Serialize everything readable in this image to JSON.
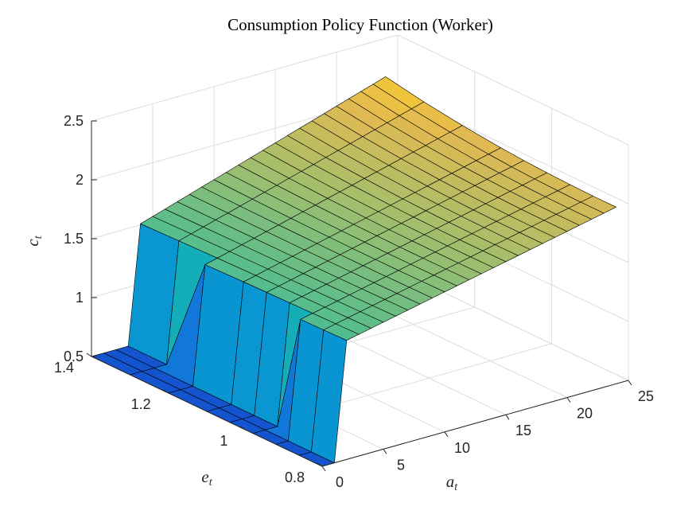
{
  "chart_data": {
    "type": "surface",
    "title": "Consumption Policy Function (Worker)",
    "xlabel": {
      "main": "a",
      "sub": "t"
    },
    "ylabel": {
      "main": "e",
      "sub": "t"
    },
    "zlabel": {
      "main": "c",
      "sub": "t"
    },
    "xlim": [
      0,
      25
    ],
    "ylim": [
      0.8,
      1.4
    ],
    "zlim": [
      0.5,
      2.5
    ],
    "xticks": [
      "0",
      "5",
      "10",
      "15",
      "20",
      "25"
    ],
    "yticks": [
      "0.8",
      "1",
      "1.2",
      "1.4"
    ],
    "zticks": [
      "0.5",
      "1",
      "1.5",
      "2",
      "2.5"
    ],
    "grid": true,
    "colormap": "parula",
    "surface": {
      "e_values": [
        0.8,
        0.86,
        0.92,
        0.98,
        1.04,
        1.1,
        1.2,
        1.3,
        1.4
      ],
      "a_jump_points": [
        1.5,
        1.7,
        1.9,
        2.1,
        2.3,
        2.5,
        2.9,
        3.3,
        3.7
      ],
      "c_low": 0.5,
      "c_jump": 1.5,
      "c_at_max_a": 2.0,
      "c_at_max_a_high_e": 2.5
    }
  }
}
